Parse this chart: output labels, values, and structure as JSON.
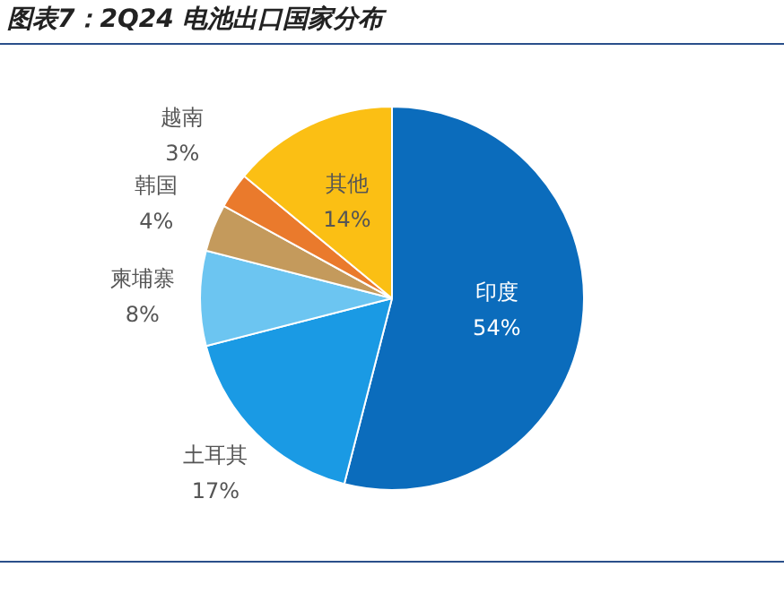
{
  "chart_data": {
    "type": "pie",
    "title": "图表7：2Q24 电池出口国家分布",
    "categories": [
      "印度",
      "土耳其",
      "柬埔寨",
      "韩国",
      "越南",
      "其他"
    ],
    "values": [
      54,
      17,
      8,
      4,
      3,
      14
    ],
    "colors": [
      "#0b6cbc",
      "#1a9ae4",
      "#6cc5f1",
      "#c49a5c",
      "#ea7a2c",
      "#fbbf14"
    ],
    "value_labels": [
      "54%",
      "17%",
      "8%",
      "4%",
      "3%",
      "14%"
    ],
    "legend": false
  }
}
